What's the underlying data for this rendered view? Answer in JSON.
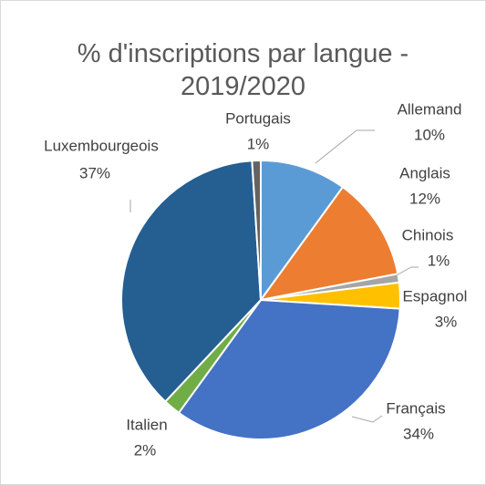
{
  "chart_data": {
    "type": "pie",
    "title": "% d'inscriptions par langue - 2019/2020",
    "categories": [
      "Allemand",
      "Anglais",
      "Chinois",
      "Espagnol",
      "Français",
      "Italien",
      "Luxembourgeois",
      "Portugais"
    ],
    "values": [
      10,
      12,
      1,
      3,
      34,
      2,
      37,
      1
    ],
    "value_labels": [
      "10%",
      "12%",
      "1%",
      "3%",
      "34%",
      "2%",
      "37%",
      "1%"
    ],
    "colors": [
      "#5b9bd5",
      "#ed7d31",
      "#a5a5a5",
      "#ffc000",
      "#4472c4",
      "#70ad47",
      "#255e91",
      "#636363"
    ]
  }
}
